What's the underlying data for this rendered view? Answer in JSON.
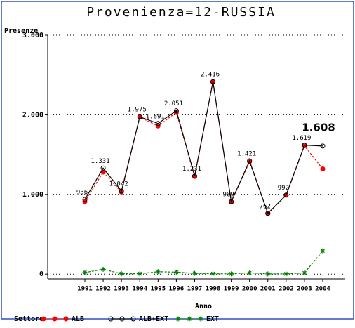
{
  "chart_data": {
    "type": "line",
    "title": "Provenienza=12-RUSSIA",
    "ylabel": "Presenze",
    "xlabel": "Anno",
    "legend_title": "Settore",
    "categories": [
      "1991",
      "1992",
      "1993",
      "1994",
      "1995",
      "1996",
      "1997",
      "1998",
      "1999",
      "2000",
      "2001",
      "2002",
      "2003",
      "2004"
    ],
    "ylim": [
      -60,
      3000
    ],
    "yticks": [
      0,
      {
        "value": 1000,
        "label": "1.000"
      },
      {
        "value": 2000,
        "label": "2.000"
      },
      {
        "value": 3000,
        "label": "3.000"
      }
    ],
    "grid": true,
    "legend": "bottom",
    "series": [
      {
        "name": "ALB",
        "color": "#ff0000",
        "line_style": "dashed",
        "marker": "filled-circle",
        "values": [
          910,
          1280,
          1030,
          1970,
          1860,
          2030,
          1225,
          2410,
          905,
          1410,
          760,
          990,
          1610,
          1320
        ]
      },
      {
        "name": "ALB+EXT",
        "color": "#000000",
        "line_style": "solid",
        "marker": "open-circle",
        "values": [
          936,
          1331,
          1042,
          1975,
          1891,
          2051,
          1231,
          2416,
          909,
          1421,
          762,
          992,
          1619,
          1608
        ],
        "value_labels": [
          "936",
          "1.331",
          "1.042",
          "1.975",
          "1.891",
          "2.051",
          "1.231",
          "2.416",
          "909",
          "1.421",
          "762",
          "992",
          "1.619",
          "1.608"
        ]
      },
      {
        "name": "EXT",
        "color": "#008000",
        "line_style": "dashed",
        "marker": "star",
        "values": [
          20,
          60,
          5,
          5,
          30,
          25,
          10,
          5,
          3,
          15,
          3,
          3,
          15,
          290
        ]
      }
    ]
  }
}
